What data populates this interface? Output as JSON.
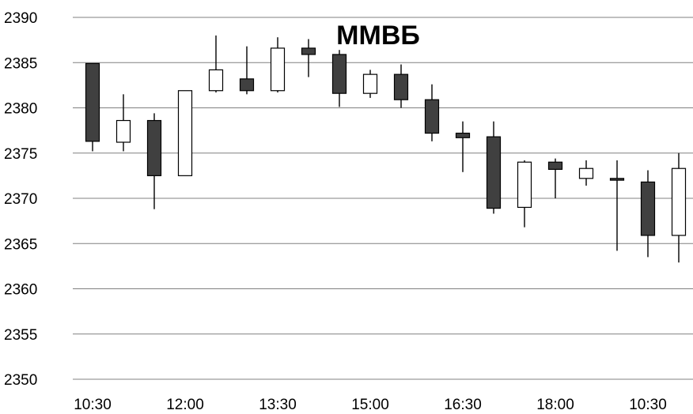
{
  "chart_data": {
    "type": "candlestick",
    "title": "ММВБ",
    "xlabel": "",
    "ylabel": "",
    "ylim": [
      2350,
      2390
    ],
    "y_ticks": [
      2390,
      2385,
      2380,
      2375,
      2370,
      2365,
      2360,
      2355,
      2350
    ],
    "x_tick_labels": [
      "10:30",
      "12:00",
      "13:30",
      "15:00",
      "16:30",
      "18:00",
      "10:30"
    ],
    "grid": true,
    "colors": {
      "down": "#404040",
      "up": "#ffffff",
      "outline": "#000000",
      "grid": "#808080"
    },
    "candles": [
      {
        "open": 2384.9,
        "high": 2384.9,
        "low": 2375.2,
        "close": 2376.3
      },
      {
        "open": 2376.2,
        "high": 2381.5,
        "low": 2375.2,
        "close": 2378.6
      },
      {
        "open": 2378.6,
        "high": 2379.4,
        "low": 2368.8,
        "close": 2372.5
      },
      {
        "open": 2372.5,
        "high": 2381.9,
        "low": 2372.5,
        "close": 2381.9
      },
      {
        "open": 2381.9,
        "high": 2388.0,
        "low": 2381.7,
        "close": 2384.2
      },
      {
        "open": 2383.2,
        "high": 2386.8,
        "low": 2381.5,
        "close": 2381.9
      },
      {
        "open": 2381.9,
        "high": 2387.8,
        "low": 2381.7,
        "close": 2386.6
      },
      {
        "open": 2386.6,
        "high": 2387.6,
        "low": 2383.4,
        "close": 2385.9
      },
      {
        "open": 2385.9,
        "high": 2386.4,
        "low": 2380.1,
        "close": 2381.6
      },
      {
        "open": 2381.6,
        "high": 2384.2,
        "low": 2381.1,
        "close": 2383.7
      },
      {
        "open": 2383.7,
        "high": 2384.8,
        "low": 2380.0,
        "close": 2380.9
      },
      {
        "open": 2380.9,
        "high": 2382.6,
        "low": 2376.3,
        "close": 2377.2
      },
      {
        "open": 2377.2,
        "high": 2378.5,
        "low": 2372.9,
        "close": 2376.7
      },
      {
        "open": 2376.8,
        "high": 2378.5,
        "low": 2368.3,
        "close": 2368.9
      },
      {
        "open": 2369.0,
        "high": 2374.2,
        "low": 2366.8,
        "close": 2374.0
      },
      {
        "open": 2374.0,
        "high": 2374.4,
        "low": 2370.0,
        "close": 2373.2
      },
      {
        "open": 2372.2,
        "high": 2374.2,
        "low": 2371.4,
        "close": 2373.3
      },
      {
        "open": 2372.2,
        "high": 2374.2,
        "low": 2364.2,
        "close": 2372.0
      },
      {
        "open": 2371.8,
        "high": 2373.1,
        "low": 2363.5,
        "close": 2365.9
      },
      {
        "open": 2365.9,
        "high": 2375.0,
        "low": 2362.9,
        "close": 2373.3
      }
    ]
  }
}
